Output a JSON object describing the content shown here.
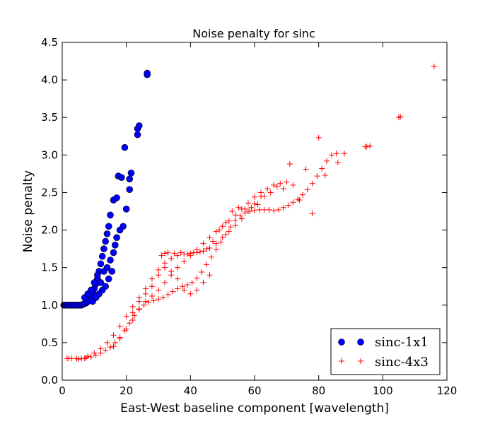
{
  "chart_data": {
    "type": "scatter",
    "title": "Noise penalty for sinc",
    "xlabel": "East-West baseline component [wavelength]",
    "ylabel": "Noise penalty",
    "xlim": [
      0,
      120
    ],
    "ylim": [
      0.0,
      4.5
    ],
    "xticks": [
      "0",
      "20",
      "40",
      "60",
      "80",
      "100",
      "120"
    ],
    "yticks": [
      "0.0",
      "0.5",
      "1.0",
      "1.5",
      "2.0",
      "2.5",
      "3.0",
      "3.5",
      "4.0",
      "4.5"
    ],
    "grid": false,
    "legend_position": "lower-right",
    "series": [
      {
        "name": "sinc-1x1",
        "marker": "circle",
        "color": "#0000ff",
        "points": [
          [
            0.5,
            1.0
          ],
          [
            1.0,
            1.0
          ],
          [
            1.5,
            1.0
          ],
          [
            2.0,
            1.0
          ],
          [
            2.5,
            1.0
          ],
          [
            3.0,
            1.0
          ],
          [
            3.5,
            1.0
          ],
          [
            4.0,
            1.0
          ],
          [
            4.5,
            1.0
          ],
          [
            5.0,
            1.0
          ],
          [
            5.5,
            1.0
          ],
          [
            6.0,
            1.0
          ],
          [
            6.5,
            1.01
          ],
          [
            7.0,
            1.02
          ],
          [
            7.5,
            1.03
          ],
          [
            8.0,
            1.05
          ],
          [
            8.5,
            1.08
          ],
          [
            9.0,
            1.12
          ],
          [
            9.5,
            1.17
          ],
          [
            10.0,
            1.22
          ],
          [
            10.5,
            1.28
          ],
          [
            11.0,
            1.35
          ],
          [
            11.5,
            1.45
          ],
          [
            12.0,
            1.55
          ],
          [
            12.5,
            1.65
          ],
          [
            13.0,
            1.75
          ],
          [
            13.5,
            1.85
          ],
          [
            14.0,
            1.95
          ],
          [
            14.5,
            2.05
          ],
          [
            15.0,
            2.2
          ],
          [
            16.0,
            2.4
          ],
          [
            17.0,
            2.43
          ],
          [
            17.5,
            2.72
          ],
          [
            18.5,
            2.7
          ],
          [
            19.0,
            2.05
          ],
          [
            19.5,
            3.1
          ],
          [
            20.0,
            2.28
          ],
          [
            21.0,
            2.54
          ],
          [
            21.0,
            2.68
          ],
          [
            21.5,
            2.76
          ],
          [
            23.5,
            3.27
          ],
          [
            23.5,
            3.35
          ],
          [
            24.0,
            3.39
          ],
          [
            26.5,
            4.07
          ],
          [
            26.5,
            4.09
          ],
          [
            7.0,
            1.1
          ],
          [
            8.0,
            1.15
          ],
          [
            9.0,
            1.2
          ],
          [
            10.0,
            1.3
          ],
          [
            11.0,
            1.4
          ],
          [
            12.0,
            1.3
          ],
          [
            13.0,
            1.45
          ],
          [
            14.0,
            1.5
          ],
          [
            15.0,
            1.6
          ],
          [
            16.0,
            1.7
          ],
          [
            16.5,
            1.8
          ],
          [
            17.0,
            1.9
          ],
          [
            18.0,
            2.0
          ],
          [
            9.5,
            1.05
          ],
          [
            10.5,
            1.1
          ],
          [
            11.5,
            1.15
          ],
          [
            12.5,
            1.2
          ],
          [
            13.5,
            1.25
          ],
          [
            14.5,
            1.35
          ],
          [
            15.5,
            1.45
          ]
        ]
      },
      {
        "name": "sinc-4x3",
        "marker": "plus",
        "color": "#ff0000",
        "points": [
          [
            1.5,
            0.29
          ],
          [
            3,
            0.29
          ],
          [
            4.5,
            0.29
          ],
          [
            6,
            0.29
          ],
          [
            7.5,
            0.3
          ],
          [
            9,
            0.31
          ],
          [
            10.5,
            0.33
          ],
          [
            12,
            0.36
          ],
          [
            13.5,
            0.4
          ],
          [
            15,
            0.44
          ],
          [
            16.5,
            0.5
          ],
          [
            18,
            0.57
          ],
          [
            19.5,
            0.66
          ],
          [
            21,
            0.76
          ],
          [
            22.5,
            0.86
          ],
          [
            24,
            0.94
          ],
          [
            25.5,
            1.0
          ],
          [
            27,
            1.04
          ],
          [
            28.5,
            1.06
          ],
          [
            30,
            1.08
          ],
          [
            31.5,
            1.1
          ],
          [
            33,
            1.14
          ],
          [
            34.5,
            1.18
          ],
          [
            36,
            1.22
          ],
          [
            37.5,
            1.25
          ],
          [
            39,
            1.27
          ],
          [
            40.5,
            1.3
          ],
          [
            42,
            1.36
          ],
          [
            43.5,
            1.44
          ],
          [
            45,
            1.54
          ],
          [
            46.5,
            1.64
          ],
          [
            48,
            1.74
          ],
          [
            49.5,
            1.84
          ],
          [
            51,
            1.94
          ],
          [
            52.5,
            2.04
          ],
          [
            54,
            2.13
          ],
          [
            55.5,
            2.19
          ],
          [
            57,
            2.23
          ],
          [
            58.5,
            2.25
          ],
          [
            60,
            2.26
          ],
          [
            61.5,
            2.27
          ],
          [
            63,
            2.27
          ],
          [
            64.5,
            2.27
          ],
          [
            66,
            2.26
          ],
          [
            67.5,
            2.27
          ],
          [
            69,
            2.3
          ],
          [
            70.5,
            2.33
          ],
          [
            72,
            2.37
          ],
          [
            73.5,
            2.41
          ],
          [
            75,
            2.47
          ],
          [
            76.5,
            2.54
          ],
          [
            78,
            2.62
          ],
          [
            79.5,
            2.72
          ],
          [
            81,
            2.82
          ],
          [
            82.5,
            2.92
          ],
          [
            84,
            3.0
          ],
          [
            85.5,
            3.02
          ],
          [
            88,
            3.02
          ],
          [
            94.5,
            3.11
          ],
          [
            95,
            3.11
          ],
          [
            96,
            3.12
          ],
          [
            105,
            3.5
          ],
          [
            105.5,
            3.51
          ],
          [
            116,
            4.18
          ],
          [
            8,
            0.32
          ],
          [
            10,
            0.36
          ],
          [
            12,
            0.42
          ],
          [
            14,
            0.5
          ],
          [
            16,
            0.6
          ],
          [
            18,
            0.72
          ],
          [
            20,
            0.85
          ],
          [
            22,
            0.98
          ],
          [
            24,
            1.1
          ],
          [
            26,
            1.22
          ],
          [
            28,
            1.35
          ],
          [
            30,
            1.47
          ],
          [
            32,
            1.56
          ],
          [
            34,
            1.62
          ],
          [
            36,
            1.66
          ],
          [
            38,
            1.68
          ],
          [
            40,
            1.69
          ],
          [
            42,
            1.7
          ],
          [
            44,
            1.72
          ],
          [
            46,
            1.76
          ],
          [
            48,
            1.82
          ],
          [
            50,
            1.9
          ],
          [
            52,
            1.98
          ],
          [
            54,
            2.06
          ],
          [
            56,
            2.15
          ],
          [
            58,
            2.25
          ],
          [
            60,
            2.35
          ],
          [
            62,
            2.45
          ],
          [
            64,
            2.55
          ],
          [
            66,
            2.6
          ],
          [
            68,
            2.62
          ],
          [
            70,
            2.64
          ],
          [
            72,
            2.6
          ],
          [
            16,
            0.45
          ],
          [
            18,
            0.55
          ],
          [
            20,
            0.68
          ],
          [
            22,
            0.8
          ],
          [
            24,
            0.95
          ],
          [
            26,
            1.05
          ],
          [
            28,
            1.12
          ],
          [
            30,
            1.2
          ],
          [
            32,
            1.3
          ],
          [
            34,
            1.4
          ],
          [
            36,
            1.5
          ],
          [
            38,
            1.58
          ],
          [
            40,
            1.66
          ],
          [
            42,
            1.74
          ],
          [
            44,
            1.82
          ],
          [
            46,
            1.9
          ],
          [
            48,
            1.98
          ],
          [
            50,
            2.05
          ],
          [
            52,
            2.12
          ],
          [
            54,
            2.2
          ],
          [
            56,
            2.28
          ],
          [
            58,
            2.36
          ],
          [
            60,
            2.44
          ],
          [
            62,
            2.5
          ],
          [
            22,
            0.9
          ],
          [
            24,
            1.05
          ],
          [
            26,
            1.15
          ],
          [
            28,
            1.25
          ],
          [
            30,
            1.4
          ],
          [
            32,
            1.5
          ],
          [
            34,
            1.45
          ],
          [
            36,
            1.35
          ],
          [
            38,
            1.2
          ],
          [
            40,
            1.15
          ],
          [
            42,
            1.2
          ],
          [
            44,
            1.3
          ],
          [
            46,
            1.4
          ],
          [
            31,
            1.66
          ],
          [
            32,
            1.69
          ],
          [
            33,
            1.7
          ],
          [
            35,
            1.69
          ],
          [
            37,
            1.7
          ],
          [
            39,
            1.68
          ],
          [
            41,
            1.7
          ],
          [
            43,
            1.71
          ],
          [
            45,
            1.75
          ],
          [
            47,
            1.85
          ],
          [
            49,
            2.0
          ],
          [
            51,
            2.1
          ],
          [
            53,
            2.25
          ],
          [
            55,
            2.3
          ],
          [
            57,
            2.28
          ],
          [
            59,
            2.3
          ],
          [
            61,
            2.34
          ],
          [
            63,
            2.45
          ],
          [
            65,
            2.5
          ],
          [
            67,
            2.58
          ],
          [
            69,
            2.55
          ],
          [
            71,
            2.88
          ],
          [
            74,
            2.4
          ],
          [
            76,
            2.81
          ],
          [
            78,
            2.22
          ],
          [
            80,
            3.23
          ],
          [
            82,
            2.73
          ],
          [
            86,
            2.9
          ],
          [
            2,
            0.29
          ],
          [
            5,
            0.28
          ],
          [
            7,
            0.29
          ]
        ]
      }
    ]
  }
}
